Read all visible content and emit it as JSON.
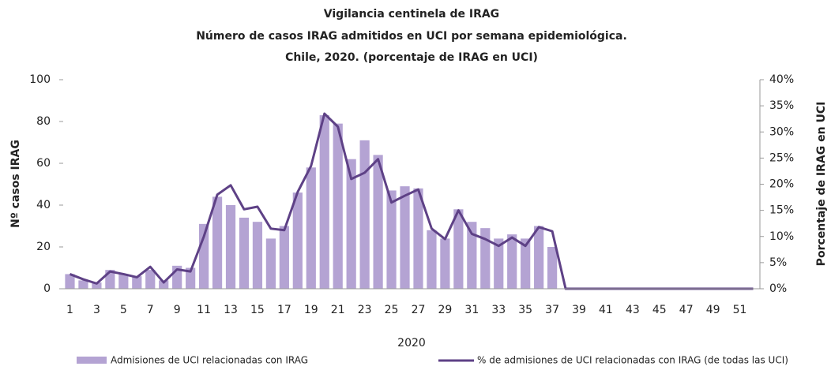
{
  "chart_data": {
    "type": "bar",
    "title": [
      "Vigilancia centinela de IRAG",
      "Número de casos IRAG admitidos en UCI por semana epidemiológica.",
      "Chile, 2020.  (porcentaje de IRAG en UCI)"
    ],
    "xlabel": "2020",
    "ylabel": "Nº casos IRAG",
    "y2label": "Porcentaje de IRAG en UCI",
    "categories": [
      1,
      null,
      3,
      null,
      5,
      null,
      7,
      null,
      9,
      null,
      11,
      null,
      13,
      null,
      15,
      null,
      17,
      null,
      19,
      null,
      21,
      null,
      23,
      null,
      25,
      null,
      27,
      null,
      29,
      null,
      31,
      null,
      33,
      null,
      35,
      null,
      37,
      null,
      39,
      null,
      41,
      null,
      43,
      null,
      45,
      null,
      47,
      null,
      49,
      null,
      51,
      null
    ],
    "series": [
      {
        "name": "Admisiones de UCI relacionadas con IRAG",
        "type": "bar",
        "color": "#b4a3d3",
        "values": [
          7,
          4,
          3,
          9,
          7,
          6,
          9,
          4,
          11,
          10,
          31,
          44,
          40,
          34,
          32,
          24,
          30,
          46,
          58,
          83,
          79,
          62,
          71,
          64,
          47,
          49,
          48,
          28,
          24,
          38,
          32,
          29,
          24,
          26,
          24,
          30,
          20,
          0,
          0,
          0,
          0,
          0,
          0,
          0,
          0,
          0,
          0,
          0,
          0,
          0,
          0,
          0
        ]
      },
      {
        "name": "% de admisiones de UCI relacionadas con IRAG (de todas las UCI)",
        "type": "line",
        "axis": "y2",
        "color": "#5e4186",
        "values": [
          2.8,
          1.8,
          1,
          3.3,
          2.8,
          2.2,
          4.2,
          1.2,
          3.7,
          3.3,
          10,
          18,
          19.8,
          15.2,
          15.7,
          11.5,
          11.2,
          18.5,
          23.5,
          33.5,
          31,
          21,
          22.2,
          24.8,
          16.5,
          17.8,
          19,
          11.5,
          9.5,
          15,
          10.5,
          9.5,
          8.2,
          9.8,
          8.2,
          11.8,
          11,
          0,
          0,
          0,
          0,
          0,
          0,
          0,
          0,
          0,
          0,
          0,
          0,
          0,
          0,
          0
        ]
      }
    ],
    "ylim": [
      0,
      100
    ],
    "yticks": [
      0,
      20,
      40,
      60,
      80,
      100
    ],
    "y2lim": [
      0,
      40
    ],
    "y2ticks": [
      {
        "value": 0,
        "label": "0%"
      },
      {
        "value": 5,
        "label": "5%"
      },
      {
        "value": 10,
        "label": "10%"
      },
      {
        "value": 15,
        "label": "15%"
      },
      {
        "value": 20,
        "label": "20%"
      },
      {
        "value": 25,
        "label": "25%"
      },
      {
        "value": 30,
        "label": "30%"
      },
      {
        "value": 35,
        "label": "35%"
      },
      {
        "value": 40,
        "label": "40%"
      }
    ],
    "grid": false,
    "legend": "bottom"
  }
}
